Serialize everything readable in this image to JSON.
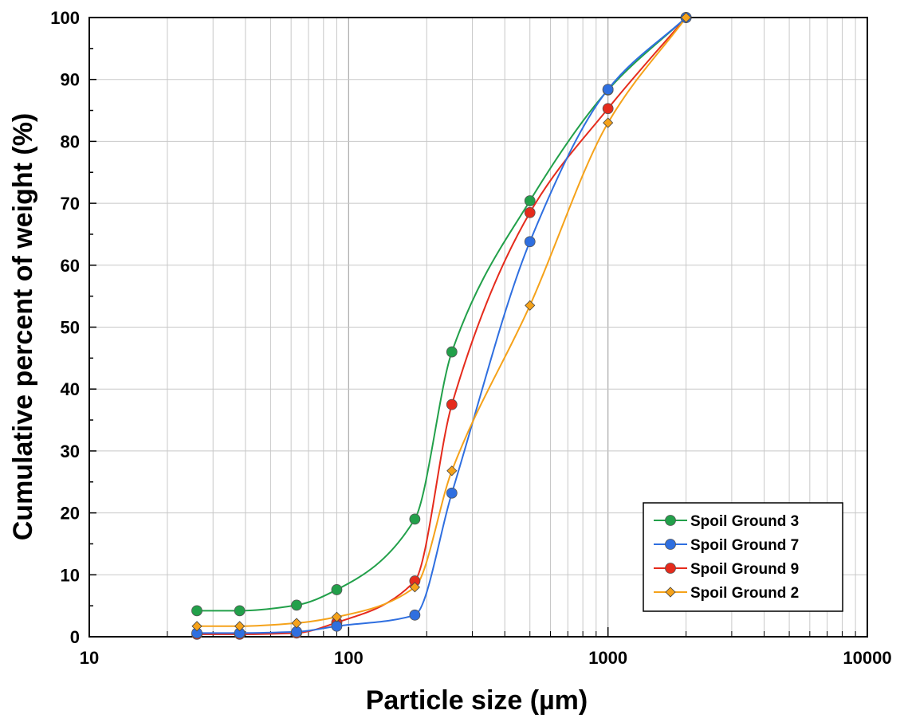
{
  "chart_data": {
    "type": "line",
    "xscale": "log",
    "xlim": [
      10,
      10000
    ],
    "ylim": [
      0,
      100
    ],
    "grid": true,
    "xlabel": "Particle size (µm)",
    "ylabel": "Cumulative percent of weight  (%)",
    "xtick_labels": [
      "10",
      "100",
      "1000",
      "10000"
    ],
    "ytick_labels": [
      "0",
      "10",
      "20",
      "30",
      "40",
      "50",
      "60",
      "70",
      "80",
      "90",
      "100"
    ],
    "legend_position": "bottom-right",
    "series": [
      {
        "name": "Spoil Ground 3",
        "color": "#22a04a",
        "marker": "circle",
        "x": [
          26,
          38,
          63,
          90,
          180,
          250,
          500,
          1000,
          2000
        ],
        "y": [
          4.2,
          4.2,
          5.1,
          7.6,
          19.0,
          46.0,
          70.4,
          88.3,
          100
        ]
      },
      {
        "name": "Spoil Ground 7",
        "color": "#2f6fe0",
        "marker": "circle",
        "x": [
          26,
          38,
          63,
          90,
          180,
          250,
          500,
          1000,
          2000
        ],
        "y": [
          0.6,
          0.6,
          0.8,
          1.7,
          3.5,
          23.2,
          63.8,
          88.4,
          100
        ]
      },
      {
        "name": "Spoil Ground 9",
        "color": "#e52b1c",
        "marker": "circle",
        "x": [
          26,
          38,
          63,
          90,
          180,
          250,
          500,
          1000,
          2000
        ],
        "y": [
          0.4,
          0.4,
          0.6,
          2.3,
          9.0,
          37.5,
          68.5,
          85.3,
          100
        ]
      },
      {
        "name": "Spoil Ground 2",
        "color": "#f5a21a",
        "marker": "diamond",
        "x": [
          26,
          38,
          63,
          90,
          180,
          250,
          500,
          1000,
          2000
        ],
        "y": [
          1.7,
          1.7,
          2.2,
          3.2,
          8.0,
          26.8,
          53.5,
          83.0,
          100
        ]
      }
    ]
  }
}
